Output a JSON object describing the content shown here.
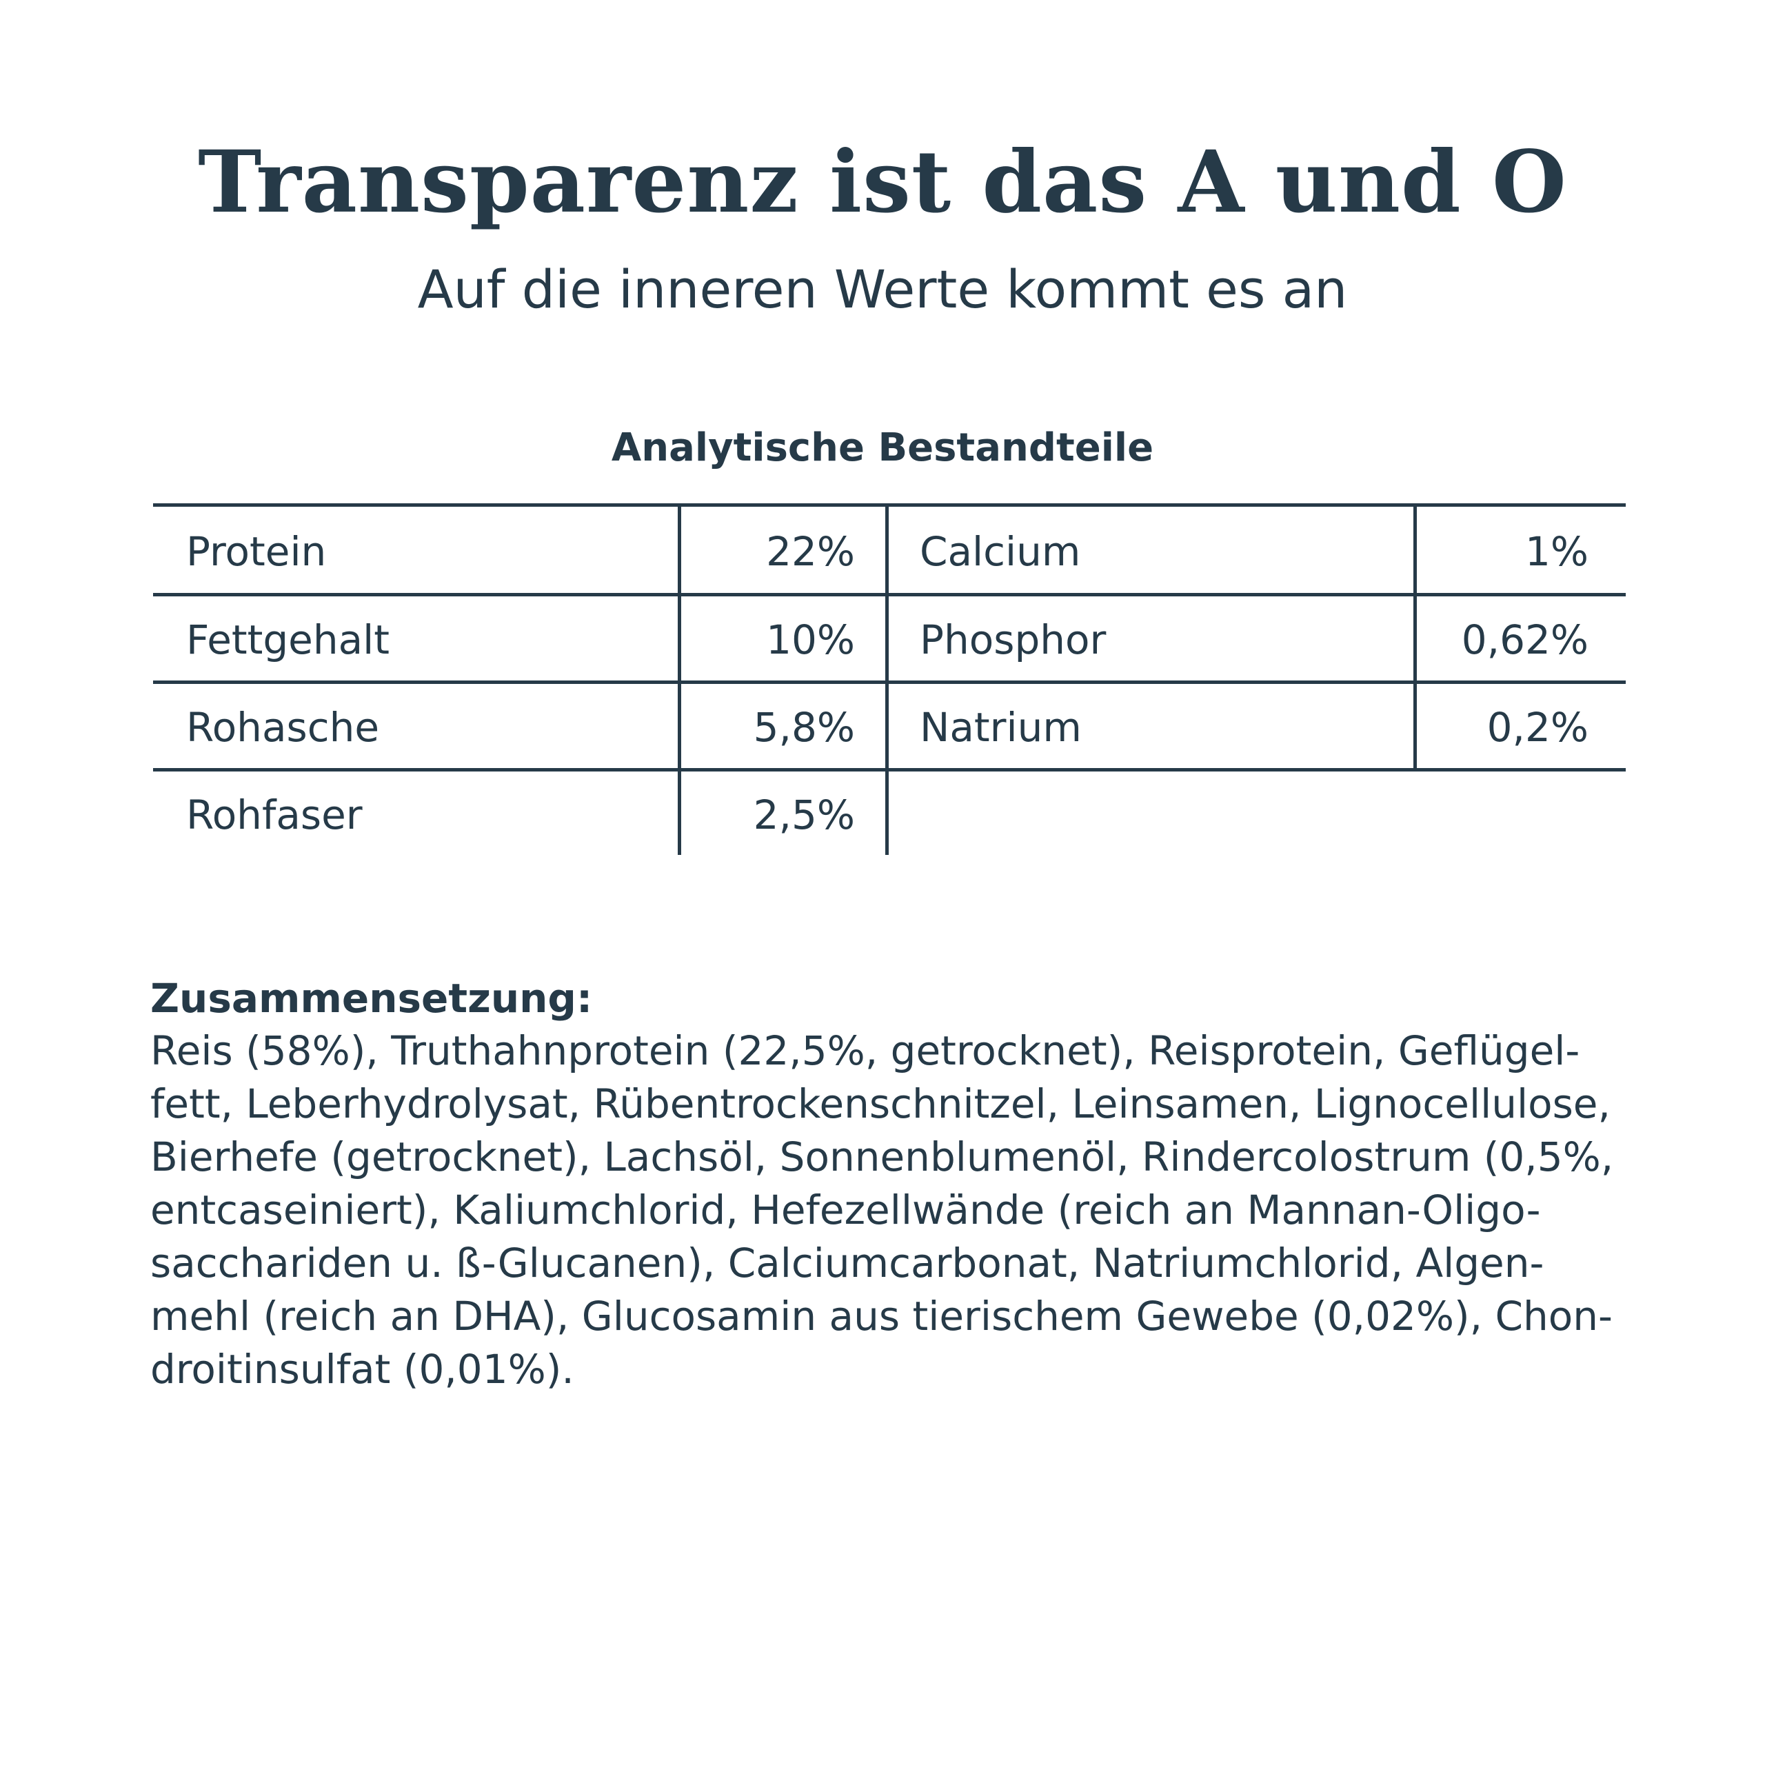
{
  "title": "Transparenz ist das A und O",
  "subtitle": "Auf die inneren Werte kommt es an",
  "table": {
    "heading": "Analytische Bestandteile",
    "left": [
      {
        "label": "Protein",
        "value": "22%"
      },
      {
        "label": "Fettgehalt",
        "value": "10%"
      },
      {
        "label": "Rohasche",
        "value": "5,8%"
      },
      {
        "label": "Rohfaser",
        "value": "2,5%"
      }
    ],
    "right": [
      {
        "label": "Calcium",
        "value": "1%"
      },
      {
        "label": "Phosphor",
        "value": "0,62%"
      },
      {
        "label": "Natrium",
        "value": "0,2%"
      }
    ]
  },
  "composition": {
    "heading": "Zusammensetzung:",
    "lines": [
      "Reis (58%), Truthahnprotein (22,5%, getrocknet), Reisprotein, Geflügel-",
      "fett, Leberhydrolysat, Rübentrockenschnitzel, Leinsamen, Lignocellulose,",
      "Bierhefe (getrocknet), Lachsöl, Sonnenblumenöl, Rindercolostrum (0,5%,",
      "entcaseiniert), Kaliumchlorid, Hefezellwände (reich an Mannan-Oligo-",
      "sacchariden u. ß-Glucanen), Calciumcarbonat, Natriumchlorid, Algen-",
      "mehl (reich an DHA), Glucosamin aus tierischem Gewebe (0,02%), Chon-",
      "droitinsulfat (0,01%)."
    ]
  },
  "colors": {
    "text": "#263a48",
    "background": "#ffffff"
  }
}
